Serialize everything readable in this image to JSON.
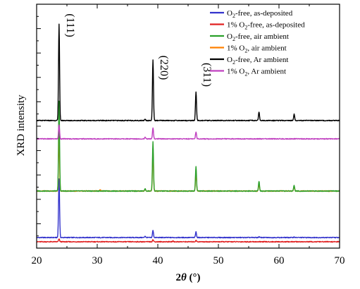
{
  "chart_data": {
    "type": "line",
    "title": "",
    "xlabel": "2θ (°)",
    "ylabel": "XRD intensity",
    "xlim": [
      20,
      70
    ],
    "x_ticks": [
      "20",
      "30",
      "40",
      "50",
      "60",
      "70"
    ],
    "y_tick_labels": false,
    "grid": false,
    "legend_position": "top-right",
    "peak_labels": [
      {
        "text": "(111)",
        "x": 23.7
      },
      {
        "text": "(220)",
        "x": 39.2
      },
      {
        "text": "(311)",
        "x": 46.3
      }
    ],
    "series": [
      {
        "name": "O2-free, as-deposited",
        "color": "#3333cc",
        "baseline": 8,
        "peaks": [
          [
            23.7,
            83
          ],
          [
            39.2,
            10
          ],
          [
            46.3,
            8
          ],
          [
            56.7,
            1
          ],
          [
            62.5,
            0.8
          ],
          [
            37.9,
            2
          ]
        ]
      },
      {
        "name": "1% O2-free, as-deposited",
        "color": "#e02020",
        "baseline": 2,
        "peaks": [
          [
            23.7,
            4
          ],
          [
            39.2,
            3
          ],
          [
            46.3,
            2
          ],
          [
            42.5,
            1
          ]
        ]
      },
      {
        "name": "O2-free, air ambient",
        "color": "#2aa02a",
        "baseline": 0,
        "offset": 74,
        "peaks": [
          [
            23.7,
            127
          ],
          [
            39.2,
            70
          ],
          [
            46.3,
            35
          ],
          [
            56.7,
            14
          ],
          [
            62.5,
            8
          ],
          [
            37.9,
            3
          ]
        ]
      },
      {
        "name": "1% O2, air ambient",
        "color": "#ff8000",
        "baseline": 0,
        "offset": 74,
        "peaks": [
          [
            23.7,
            80
          ],
          [
            39.2,
            58
          ],
          [
            46.3,
            27
          ],
          [
            56.7,
            10
          ],
          [
            62.5,
            6
          ],
          [
            30.5,
            2
          ],
          [
            37.9,
            3
          ]
        ]
      },
      {
        "name": "O2-free, Ar ambient",
        "color": "#000000",
        "baseline": 0,
        "offset": 174,
        "peaks": [
          [
            23.7,
            137
          ],
          [
            39.2,
            86
          ],
          [
            46.3,
            41
          ],
          [
            56.7,
            12
          ],
          [
            62.5,
            9
          ],
          [
            37.9,
            2
          ]
        ]
      },
      {
        "name": "1% O2, Ar ambient",
        "color": "#c040c0",
        "baseline": 0,
        "offset": 148,
        "peaks": [
          [
            23.7,
            20
          ],
          [
            39.2,
            16
          ],
          [
            46.3,
            10
          ],
          [
            37.9,
            2
          ]
        ]
      }
    ],
    "legend": [
      {
        "main": "O",
        "sub": "2",
        "rest": "-free, as-deposited",
        "color": "#3333cc"
      },
      {
        "main": "1% O",
        "sub": "2",
        "rest": "-free, as-deposited",
        "color": "#e02020"
      },
      {
        "main": "O",
        "sub": "2",
        "rest": "-free, air ambient",
        "color": "#2aa02a"
      },
      {
        "main": "1% O",
        "sub": "2",
        "rest": ", air ambient",
        "color": "#ff8000"
      },
      {
        "main": "O",
        "sub": "2",
        "rest": "-free, Ar ambient",
        "color": "#000000"
      },
      {
        "main": "1% O",
        "sub": "2",
        "rest": ", Ar ambient",
        "color": "#c040c0"
      }
    ]
  }
}
